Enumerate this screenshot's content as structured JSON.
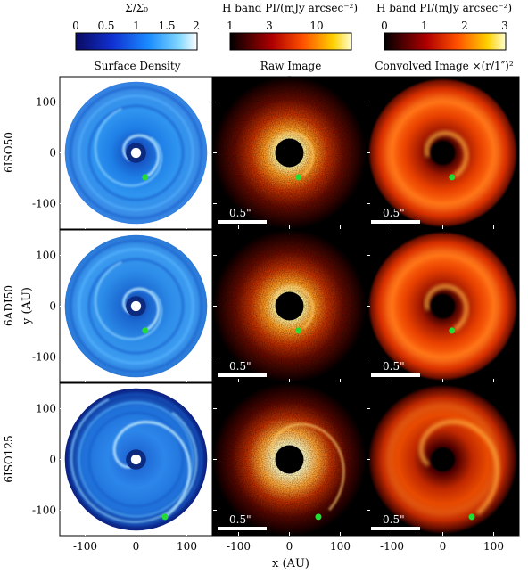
{
  "chart_data": {
    "type": "heatmap",
    "colorbars": [
      {
        "title": "Σ/Σ₀",
        "ticks": [
          "0",
          "0.5",
          "1",
          "1.5",
          "2"
        ],
        "range": [
          0,
          2
        ],
        "scale": "linear",
        "colormap": "blue"
      },
      {
        "title": "H band PI/(mJy arcsec⁻²)",
        "ticks": [
          "1",
          "3",
          "10"
        ],
        "range": [
          1,
          20
        ],
        "scale": "log",
        "colormap": "hot"
      },
      {
        "title": "H band PI/(mJy arcsec⁻²)",
        "ticks": [
          "0",
          "1",
          "2",
          "3"
        ],
        "range": [
          0,
          3
        ],
        "scale": "linear",
        "colormap": "hot"
      }
    ],
    "column_titles": [
      "Surface Density",
      "Raw Image",
      "Convolved Image ×(r/1″)²"
    ],
    "row_labels": [
      "6ISO50",
      "6ADI50",
      "6ISO125"
    ],
    "xlabel": "x (AU)",
    "ylabel": "y (AU)",
    "xlim": [
      -150,
      150
    ],
    "ylim": [
      -150,
      150
    ],
    "xticks": [
      "-100",
      "0",
      "100"
    ],
    "yticks": [
      "100",
      "0",
      "-100"
    ],
    "scalebar_label": "0.5\"",
    "planets": [
      {
        "row": "6ISO50",
        "x": 18,
        "y": -48
      },
      {
        "row": "6ADI50",
        "x": 18,
        "y": -48
      },
      {
        "row": "6ISO125",
        "x": 57,
        "y": -113
      }
    ],
    "colors": {
      "planet": "#22dd33",
      "scalebar": "#ffffff",
      "background": "#000000"
    }
  }
}
